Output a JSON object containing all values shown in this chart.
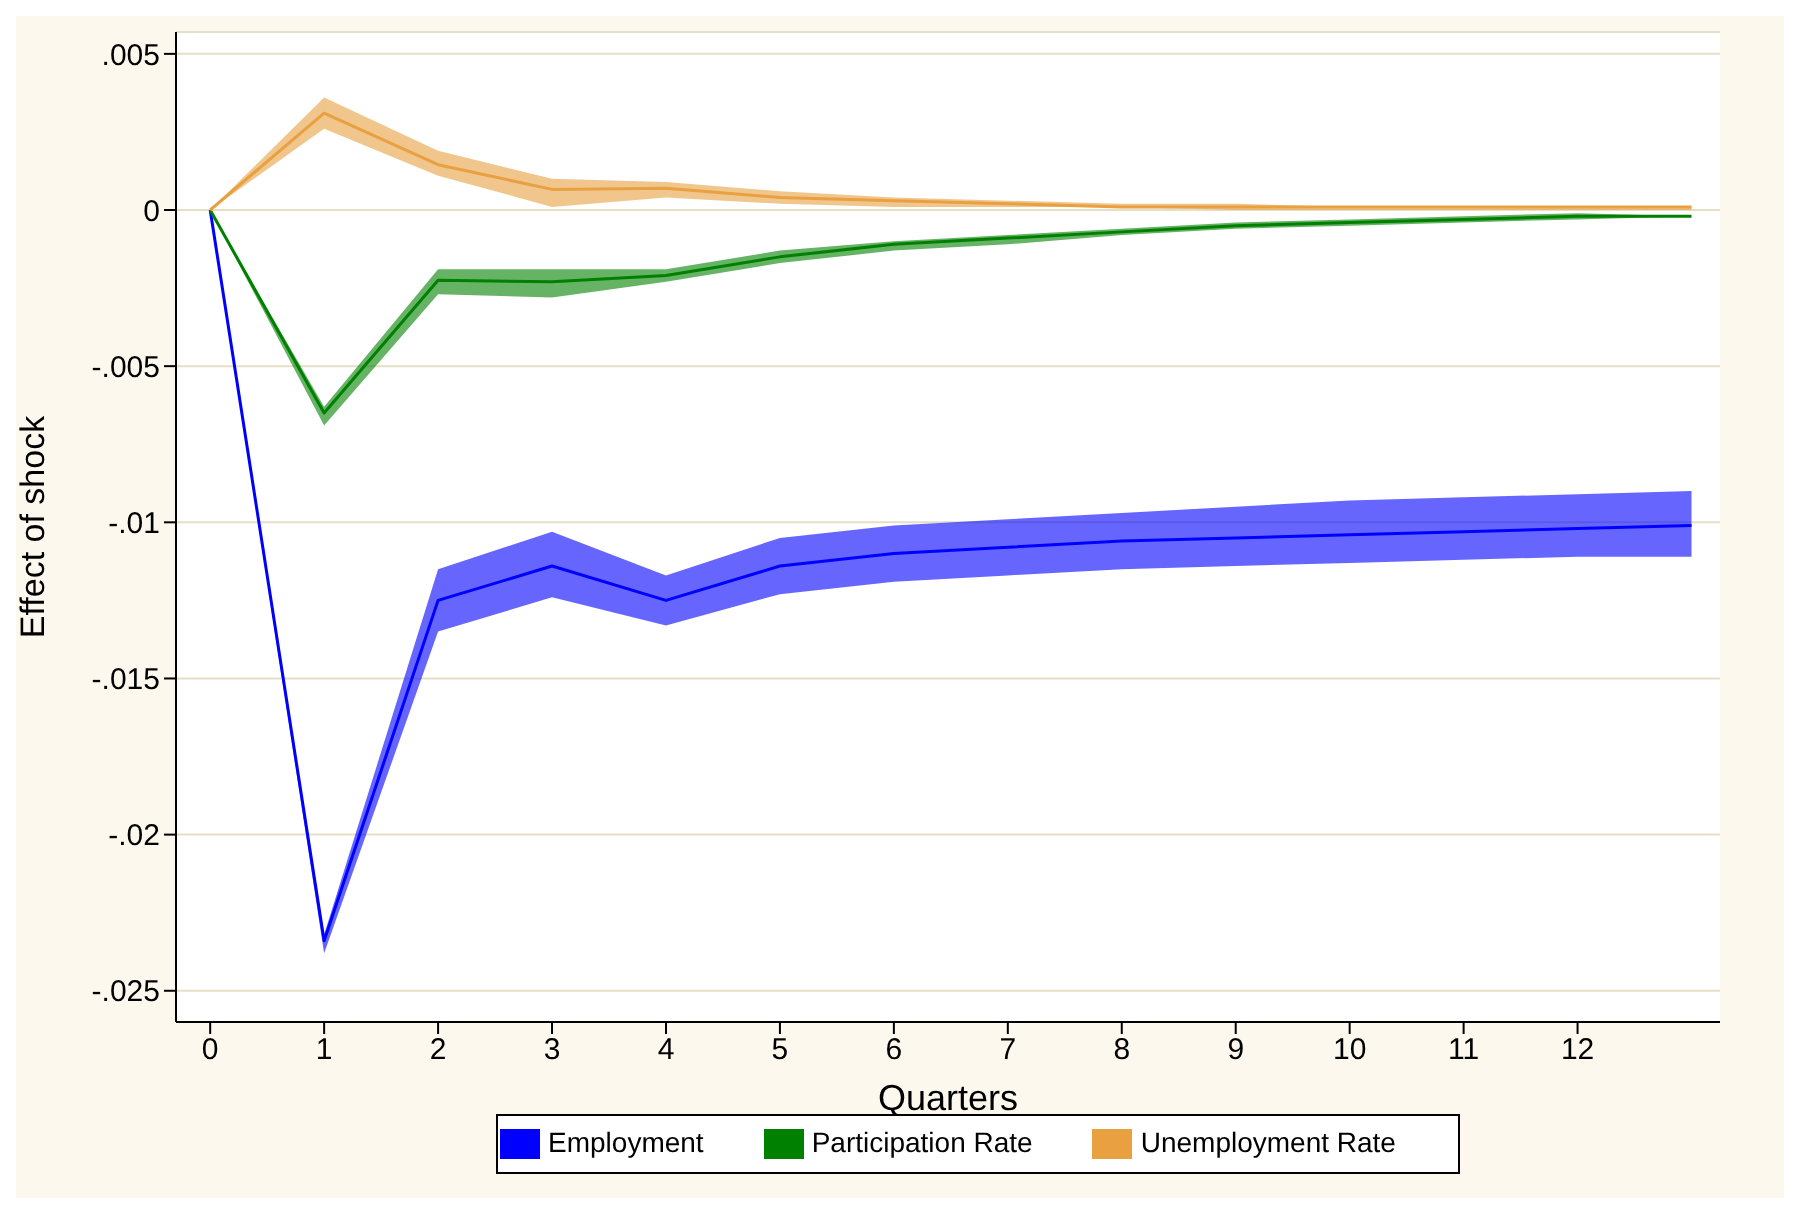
{
  "chart_data": {
    "type": "line",
    "xlabel": "Quarters",
    "ylabel": "Effect of shock",
    "x": [
      0,
      1,
      2,
      3,
      4,
      5,
      6,
      7,
      8,
      9,
      10,
      11,
      12,
      13
    ],
    "xlim": [
      -0.3,
      13.25
    ],
    "xticks": [
      0,
      1,
      2,
      3,
      4,
      5,
      6,
      7,
      8,
      9,
      10,
      11,
      12
    ],
    "ylim": [
      -0.026,
      0.0057
    ],
    "yticks": [
      {
        "value": 0.005,
        "label": ".005"
      },
      0,
      {
        "value": -0.005,
        "label": "-.005"
      },
      {
        "value": -0.01,
        "label": "-.01"
      },
      {
        "value": -0.015,
        "label": "-.015"
      },
      {
        "value": -0.02,
        "label": "-.02"
      },
      {
        "value": -0.025,
        "label": "-.025"
      }
    ],
    "grid": "y",
    "legend": "bottom",
    "marker": "none",
    "line_style": "solid",
    "series": [
      {
        "name": "Employment",
        "color": "#0000ff",
        "values": [
          0,
          -0.0234,
          -0.0125,
          -0.0114,
          -0.0125,
          -0.0114,
          -0.011,
          -0.0108,
          -0.0106,
          -0.0105,
          -0.0104,
          -0.0103,
          -0.0102,
          -0.0101
        ],
        "lower": [
          0,
          -0.0238,
          -0.0135,
          -0.0124,
          -0.0133,
          -0.0123,
          -0.0119,
          -0.0117,
          -0.0115,
          -0.0114,
          -0.0113,
          -0.0112,
          -0.0111,
          -0.0111
        ],
        "upper": [
          0,
          -0.0232,
          -0.0115,
          -0.0103,
          -0.0117,
          -0.0105,
          -0.0101,
          -0.0099,
          -0.0097,
          -0.0095,
          -0.0093,
          -0.0092,
          -0.0091,
          -0.009
        ]
      },
      {
        "name": "Participation Rate",
        "color": "#008000",
        "values": [
          0,
          -0.0065,
          -0.00225,
          -0.0023,
          -0.0021,
          -0.0015,
          -0.0011,
          -0.0009,
          -0.0007,
          -0.0005,
          -0.0004,
          -0.0003,
          -0.0002,
          -0.0002
        ],
        "lower": [
          0,
          -0.0069,
          -0.0027,
          -0.0028,
          -0.0023,
          -0.0017,
          -0.0013,
          -0.0011,
          -0.0008,
          -0.0006,
          -0.0005,
          -0.0004,
          -0.0003,
          -0.0002
        ],
        "upper": [
          0,
          -0.0063,
          -0.0019,
          -0.0019,
          -0.0019,
          -0.0013,
          -0.001,
          -0.0008,
          -0.0006,
          -0.0004,
          -0.0003,
          -0.0002,
          -0.0001,
          -0.0002
        ]
      },
      {
        "name": "Unemployment Rate",
        "color": "#e8a040",
        "values": [
          0,
          0.0031,
          0.00145,
          0.00066,
          0.0007,
          0.0004,
          0.0003,
          0.0002,
          0.0001,
          0.0001,
          0.0001,
          0.0001,
          0.0001,
          0.0001
        ],
        "lower": [
          0,
          0.0026,
          0.0011,
          0.0001,
          0.0004,
          0.0002,
          0.0001,
          0.0001,
          0.0001,
          0,
          0,
          0,
          0,
          0
        ],
        "upper": [
          0,
          0.0036,
          0.0019,
          0.001,
          0.0009,
          0.0006,
          0.0004,
          0.0003,
          0.0002,
          0.0002,
          0.0001,
          0.0001,
          0.0001,
          0.0001
        ]
      }
    ]
  }
}
